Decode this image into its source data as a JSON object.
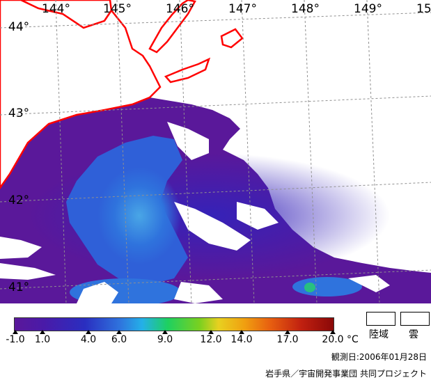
{
  "map": {
    "lon_labels": [
      "144°",
      "145°",
      "146°",
      "147°",
      "148°",
      "149°",
      "15"
    ],
    "lat_labels": [
      "44°",
      "43°",
      "42°",
      "41°"
    ]
  },
  "legend": {
    "ticks": [
      "-1.0",
      "1.0",
      "4.0",
      "6.0",
      "9.0",
      "12.0",
      "14.0",
      "17.0",
      "20.0"
    ],
    "unit": "°C",
    "land_label": "陸域",
    "cloud_label": "雲"
  },
  "footer": {
    "observation_date": "観測日:2006年01月28日",
    "credit": "岩手県／宇宙開発事業団 共同プロジェクト"
  },
  "colors": {
    "coast": "#ff0000",
    "water_purple": "#5a189a",
    "water_indigo": "#3320b0",
    "water_blue": "#2a6ae0",
    "water_cyan": "#3aa0e8",
    "land": "#ffffff",
    "grid": "#909090"
  }
}
